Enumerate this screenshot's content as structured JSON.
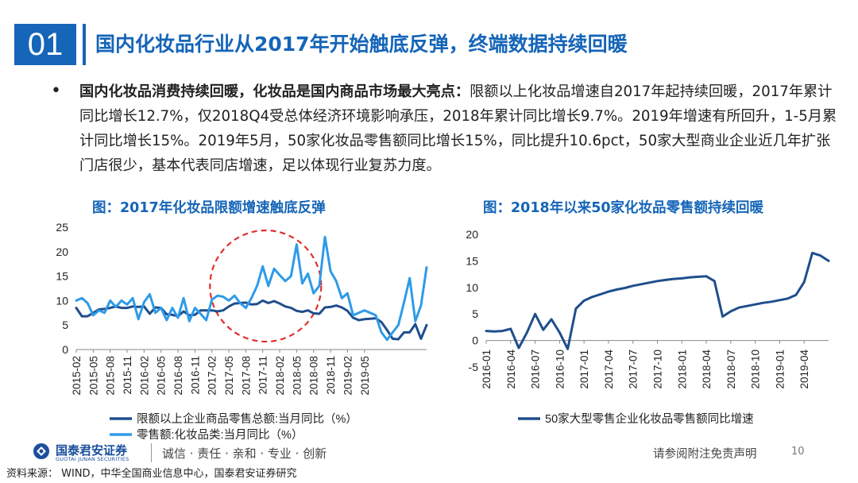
{
  "header": {
    "slide_number": "01",
    "title": "国内化妆品行业从2017年开始触底反弹，终端数据持续回暖"
  },
  "bullet": {
    "lead": "国内化妆品消费持续回暖，化妆品是国内商品市场最大亮点：",
    "body": "限额以上化妆品增速自2017年起持续回暖，2017年累计同比增长12.7%，仅2018Q4受总体经济环境影响承压，2018年累计同比增长9.7%。2019年增速有所回升，1-5月累计同比增长15%。2019年5月，50家化妆品零售额同比增长15%，同比提升10.6pct，50家大型商业企业近几年扩张门店很少，基本代表同店增速，足以体现行业复苏力度。"
  },
  "colors": {
    "accent": "#1565b8",
    "series_dark": "#1f4e8c",
    "series_light": "#2e9be8",
    "highlight_circle": "#e03030"
  },
  "chart_data": [
    {
      "type": "line",
      "title": "图：2017年化妆品限额增速触底反弹",
      "ylim": [
        0,
        25
      ],
      "yticks": [
        0,
        5,
        10,
        15,
        20,
        25
      ],
      "x_tick_labels": [
        "2015-02",
        "2015-05",
        "2015-08",
        "2015-11",
        "2016-02",
        "2016-05",
        "2016-08",
        "2016-11",
        "2017-02",
        "2017-05",
        "2017-08",
        "2017-11",
        "2018-02",
        "2018-05",
        "2018-08",
        "2018-11",
        "2019-02",
        "2019-05"
      ],
      "x_start": "2015-02",
      "x_end": "2019-05",
      "grid": false,
      "legend_position": "bottom",
      "annotation": "red dashed circle highlighting 2017-05 to 2018-06",
      "series": [
        {
          "name": "限额以上企业商品零售总额:当月同比（%）",
          "color": "#1f4e8c",
          "values": [
            8.5,
            6.8,
            6.8,
            7.5,
            8.2,
            8.3,
            8.5,
            8.8,
            8.5,
            8.5,
            8.8,
            8.7,
            8.8,
            7.3,
            8.6,
            8.5,
            7.2,
            7.1,
            6.8,
            7.8,
            7.0,
            7.1,
            8.0,
            8.0,
            8.0,
            7.8,
            8.0,
            8.8,
            9.4,
            9.5,
            9.6,
            9.2,
            9.3,
            10.0,
            9.5,
            9.9,
            9.4,
            8.8,
            8.5,
            7.9,
            7.7,
            8.0,
            7.4,
            7.3,
            8.6,
            8.7,
            9.0,
            8.6,
            7.9,
            6.5,
            6.0,
            6.2,
            6.3,
            6.4,
            5.6,
            4.0,
            2.2,
            2.1,
            3.5,
            3.5,
            5.2,
            2.2,
            5.0
          ]
        },
        {
          "name": "零售额:化妆品类:当月同比（%）",
          "color": "#2e9be8",
          "values": [
            10.0,
            10.5,
            9.5,
            7.0,
            8.0,
            7.5,
            10.0,
            8.7,
            10.0,
            9.2,
            10.5,
            6.2,
            9.7,
            11.3,
            7.5,
            8.5,
            6.0,
            8.5,
            6.5,
            10.5,
            5.8,
            8.5,
            7.3,
            6.0,
            10.2,
            11.0,
            10.8,
            10.0,
            11.0,
            9.5,
            8.5,
            10.5,
            13.0,
            17.0,
            13.0,
            16.5,
            15.2,
            14.0,
            15.0,
            21.5,
            13.5,
            15.5,
            11.5,
            13.0,
            23.0,
            16.0,
            14.0,
            10.5,
            11.5,
            7.0,
            7.5,
            8.0,
            7.5,
            7.0,
            3.5,
            2.0,
            3.5,
            5.0,
            9.6,
            14.6,
            5.8,
            9.0,
            16.8
          ]
        }
      ]
    },
    {
      "type": "line",
      "title": "图：2018年以来50家化妆品零售额持续回暖",
      "ylim": [
        -5,
        20
      ],
      "yticks": [
        -5,
        0,
        5,
        10,
        15,
        20
      ],
      "x_tick_labels": [
        "2016-01",
        "2016-04",
        "2016-07",
        "2016-10",
        "2017-01",
        "2017-04",
        "2017-07",
        "2017-10",
        "2018-01",
        "2018-04",
        "2018-07",
        "2018-10",
        "2019-01",
        "2019-04"
      ],
      "x_start": "2016-01",
      "x_end": "2019-05",
      "grid": false,
      "legend_position": "bottom",
      "series": [
        {
          "name": "50家大型零售企业化妆品零售额同比增速",
          "color": "#1f4e8c",
          "values": [
            1.8,
            1.7,
            1.8,
            2.2,
            -1.4,
            1.5,
            5.0,
            2.0,
            4.0,
            1.5,
            -1.6,
            6.0,
            7.5,
            8.2,
            8.7,
            9.2,
            9.6,
            9.9,
            10.3,
            10.6,
            10.9,
            11.2,
            11.4,
            11.6,
            11.7,
            11.9,
            12.0,
            12.1,
            11.2,
            4.5,
            5.5,
            6.2,
            6.5,
            6.8,
            7.1,
            7.3,
            7.6,
            7.9,
            8.6,
            11.0,
            16.5,
            16.0,
            15.0
          ]
        }
      ]
    }
  ],
  "footer": {
    "brand_cn": "国泰君安证券",
    "brand_en": "GUOTAI JUNAN SECURITIES",
    "motto": "诚信 · 责任 · 亲和 · 专业 · 创新",
    "disclaimer": "请参阅附注免责声明",
    "page": "10",
    "source": "资料来源：  WIND，中华全国商业信息中心，国泰君安证券研究"
  }
}
